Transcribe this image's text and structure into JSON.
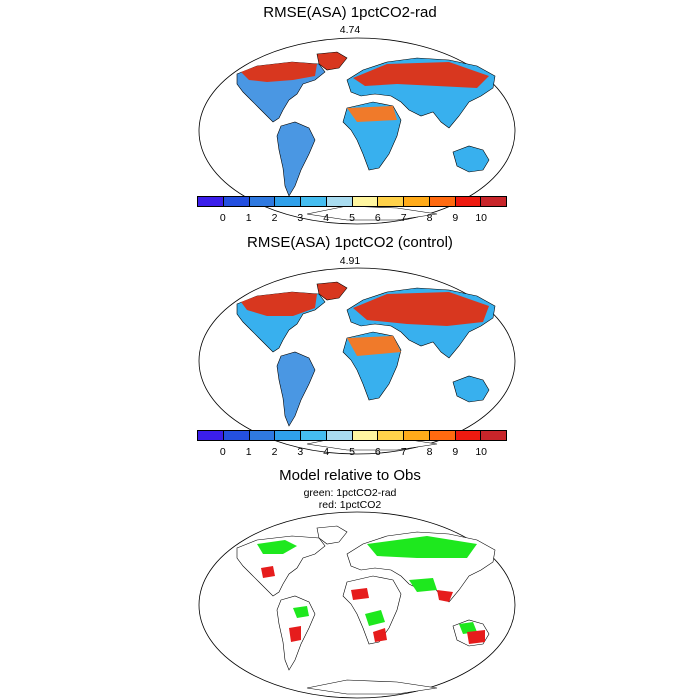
{
  "panels": [
    {
      "title": "RMSE(ASA) 1pctCO2-rad",
      "value": "4.74"
    },
    {
      "title": "RMSE(ASA) 1pctCO2 (control)",
      "value": "4.91"
    },
    {
      "title": "Model relative to Obs",
      "legend": [
        "green: 1pctCO2-rad",
        "red: 1pctCO2"
      ]
    }
  ],
  "colorbar": {
    "colors": [
      "#3b1eea",
      "#2450e0",
      "#2f79e0",
      "#2fa0ea",
      "#45bdf0",
      "#a9dcf0",
      "#fff6a0",
      "#ffd24a",
      "#ffab1a",
      "#ff6a10",
      "#ee1a10",
      "#c8252a"
    ],
    "ticks": [
      "0",
      "1",
      "2",
      "3",
      "4",
      "5",
      "6",
      "7",
      "8",
      "9",
      "10"
    ]
  },
  "map_colors": {
    "land_low": "#4a97e3",
    "land_mid": "#38b0ee",
    "land_high": "#d8371f",
    "land_hot": "#f07a2a",
    "green": "#1ee81e",
    "red": "#e61c1c"
  }
}
